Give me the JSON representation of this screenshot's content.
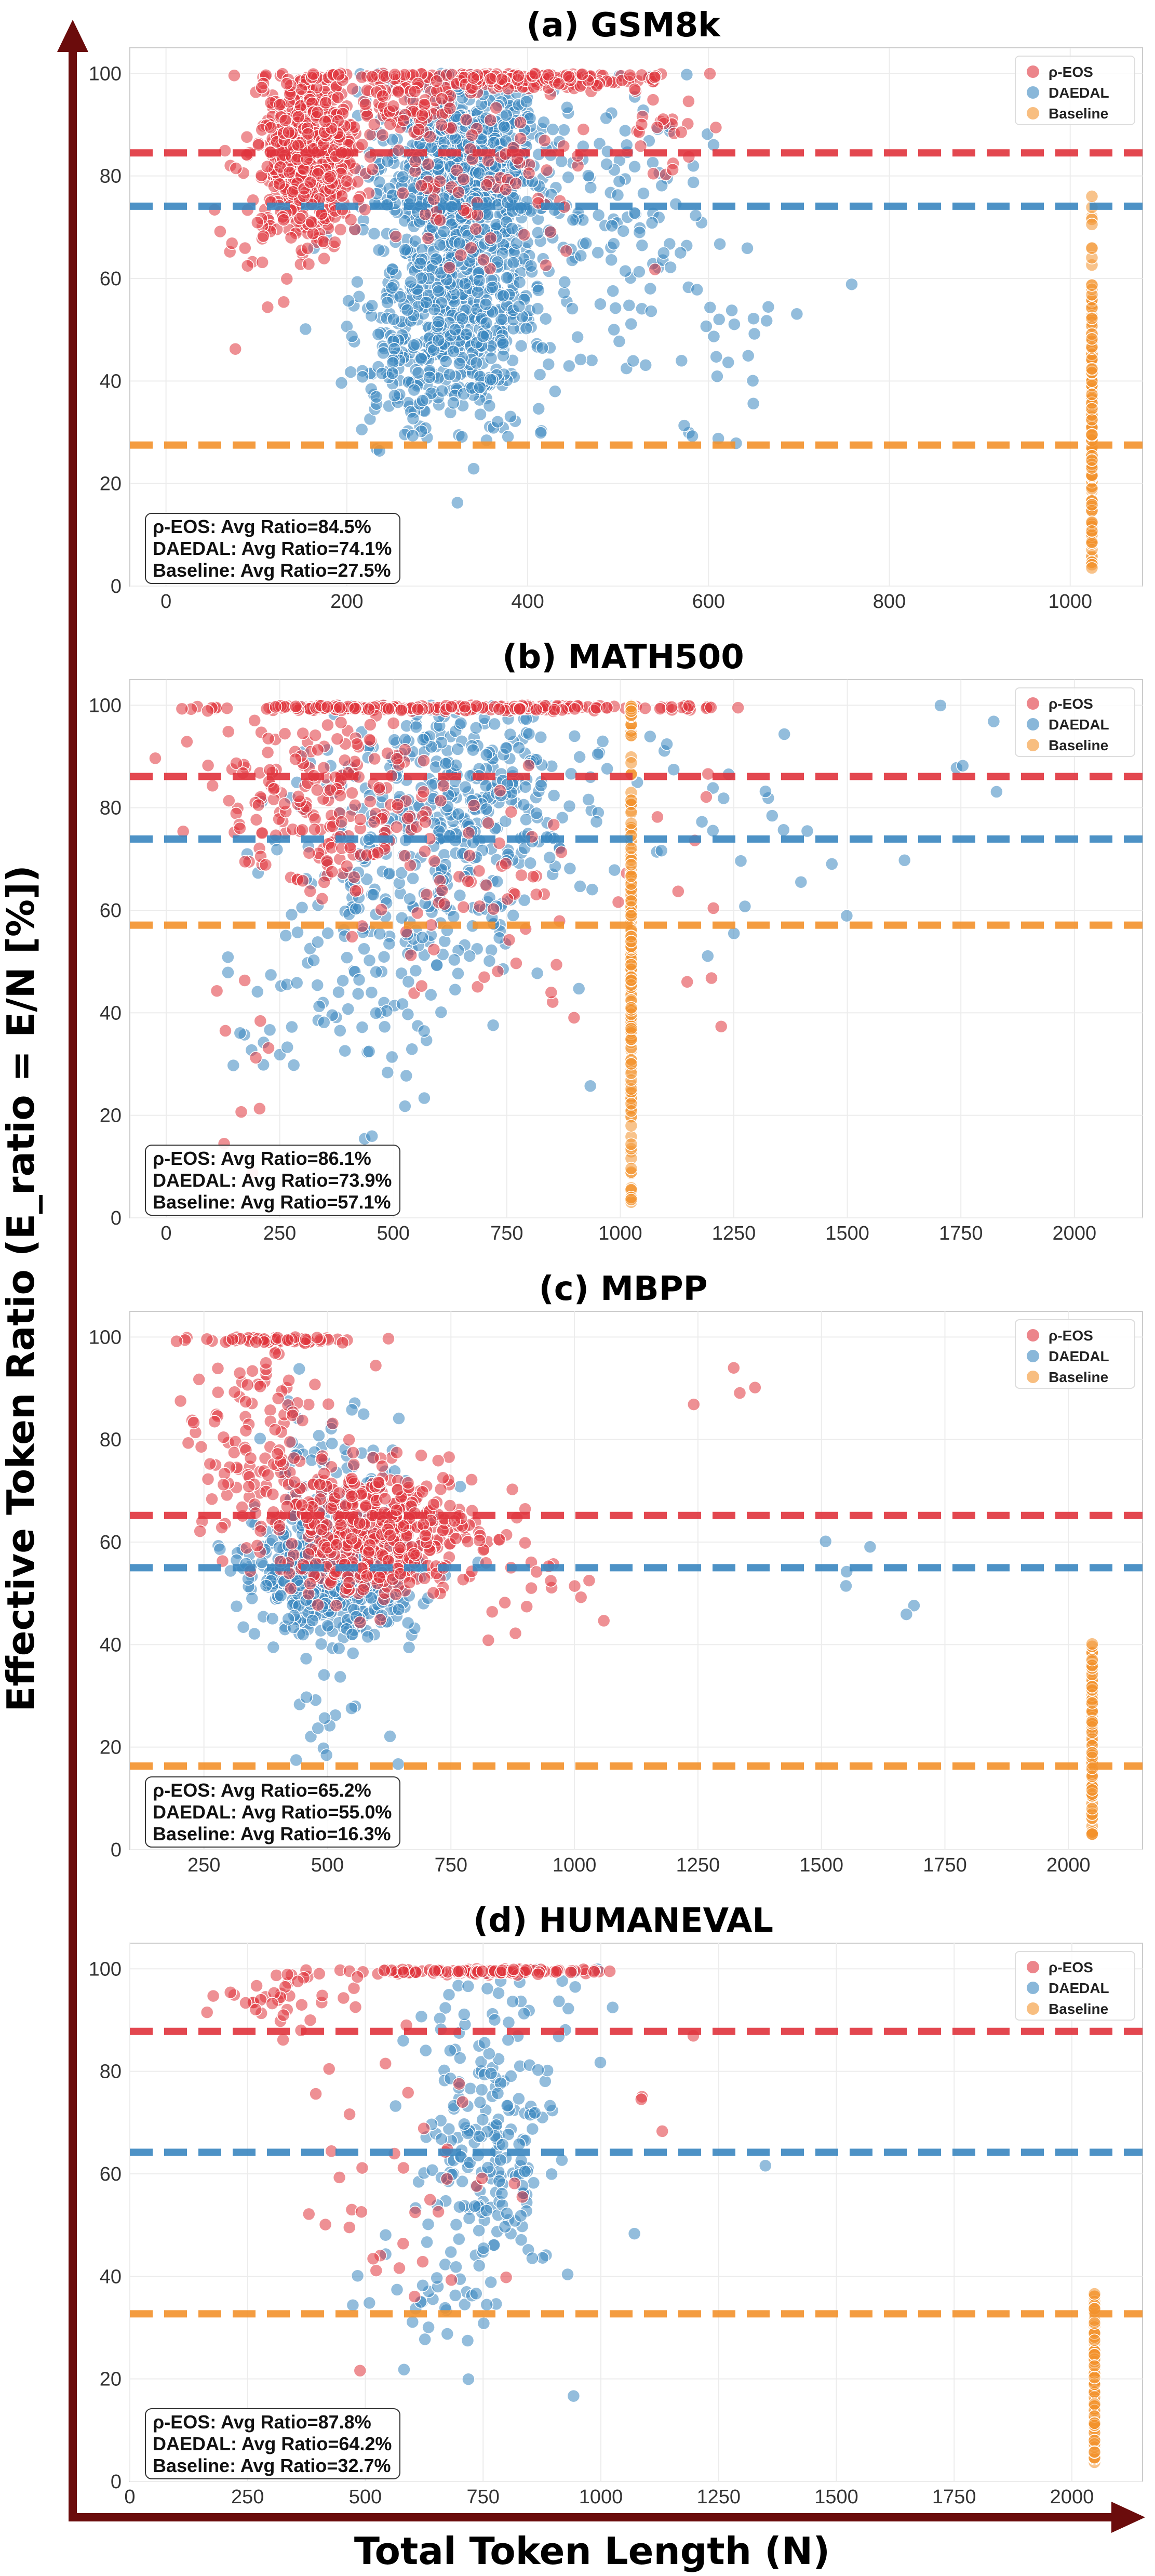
{
  "figure": {
    "y_axis_label": "Effective Token Ratio (E_ratio = E/N [%])",
    "x_axis_label": "Total Token Length (N)"
  },
  "colors": {
    "rho_eos": "#e0343d",
    "daedal": "#3a87c0",
    "baseline": "#f3922c",
    "axis_arrow": "#6b0c0c"
  },
  "chart_data": [
    {
      "id": "a",
      "type": "scatter",
      "title": "(a) GSM8k",
      "xlim": [
        -40,
        1080
      ],
      "ylim": [
        0,
        105
      ],
      "xticks": [
        0,
        200,
        400,
        600,
        800,
        1000
      ],
      "yticks": [
        0,
        20,
        40,
        60,
        80,
        100
      ],
      "legend": [
        "ρ-EOS",
        "DAEDAL",
        "Baseline"
      ],
      "avg_lines": {
        "rho_eos": 84.5,
        "daedal": 74.1,
        "baseline": 27.5
      },
      "annotation": [
        "ρ-EOS: Avg Ratio=84.5%",
        "DAEDAL: Avg Ratio=74.1%",
        "Baseline: Avg Ratio=27.5%"
      ],
      "clusters": {
        "rho_eos": [
          [
            160,
            50,
            84,
            8,
            700
          ],
          [
            260,
            70,
            96,
            4,
            120
          ],
          [
            420,
            110,
            99,
            1,
            160
          ],
          [
            350,
            120,
            80,
            8,
            80
          ],
          [
            560,
            80,
            88,
            8,
            25
          ],
          [
            100,
            40,
            70,
            10,
            25
          ]
        ],
        "daedal": [
          [
            330,
            90,
            82,
            9,
            800
          ],
          [
            330,
            100,
            55,
            12,
            500
          ],
          [
            280,
            80,
            43,
            6,
            120
          ],
          [
            500,
            100,
            70,
            15,
            100
          ],
          [
            620,
            120,
            50,
            10,
            30
          ]
        ],
        "baseline": [
          [
            1024,
            0,
            30,
            13,
            180
          ],
          [
            1024,
            0,
            60,
            10,
            20
          ]
        ]
      }
    },
    {
      "id": "b",
      "type": "scatter",
      "title": "(b) MATH500",
      "xlim": [
        -80,
        2150
      ],
      "ylim": [
        0,
        105
      ],
      "xticks": [
        0,
        250,
        500,
        750,
        1000,
        1250,
        1500,
        1750,
        2000
      ],
      "yticks": [
        0,
        20,
        40,
        60,
        80,
        100
      ],
      "legend": [
        "ρ-EOS",
        "DAEDAL",
        "Baseline"
      ],
      "avg_lines": {
        "rho_eos": 86.1,
        "daedal": 73.9,
        "baseline": 57.1
      },
      "annotation": [
        "ρ-EOS: Avg Ratio=86.1%",
        "DAEDAL: Avg Ratio=73.9%",
        "Baseline: Avg Ratio=57.1%"
      ],
      "clusters": {
        "rho_eos": [
          [
            700,
            520,
            99.5,
            0.3,
            220
          ],
          [
            350,
            230,
            82,
            10,
            220
          ],
          [
            700,
            250,
            65,
            12,
            60
          ],
          [
            150,
            80,
            30,
            12,
            10
          ],
          [
            1150,
            150,
            70,
            15,
            10
          ]
        ],
        "daedal": [
          [
            650,
            300,
            85,
            10,
            300
          ],
          [
            550,
            300,
            62,
            12,
            200
          ],
          [
            400,
            250,
            40,
            10,
            60
          ],
          [
            1300,
            300,
            75,
            15,
            20
          ],
          [
            1700,
            150,
            90,
            12,
            6
          ]
        ],
        "baseline": [
          [
            1024,
            0,
            50,
            24,
            180
          ],
          [
            1024,
            0,
            98,
            2,
            30
          ]
        ]
      }
    },
    {
      "id": "c",
      "type": "scatter",
      "title": "(c) MBPP",
      "xlim": [
        100,
        2150
      ],
      "ylim": [
        0,
        105
      ],
      "xticks": [
        250,
        500,
        750,
        1000,
        1250,
        1500,
        1750,
        2000
      ],
      "yticks": [
        0,
        20,
        40,
        60,
        80,
        100
      ],
      "legend": [
        "ρ-EOS",
        "DAEDAL",
        "Baseline"
      ],
      "avg_lines": {
        "rho_eos": 65.2,
        "daedal": 55.0,
        "baseline": 16.3
      },
      "annotation": [
        "ρ-EOS: Avg Ratio=65.2%",
        "DAEDAL: Avg Ratio=55.0%",
        "Baseline: Avg Ratio=16.3%"
      ],
      "clusters": {
        "rho_eos": [
          [
            600,
            200,
            62,
            6,
            500
          ],
          [
            350,
            150,
            80,
            12,
            120
          ],
          [
            400,
            150,
            99.5,
            0.3,
            60
          ],
          [
            900,
            100,
            55,
            6,
            20
          ],
          [
            1300,
            100,
            70,
            12,
            4
          ]
        ],
        "daedal": [
          [
            520,
            160,
            54,
            6,
            650
          ],
          [
            500,
            150,
            70,
            10,
            80
          ],
          [
            500,
            120,
            25,
            4,
            15
          ],
          [
            1600,
            200,
            50,
            8,
            6
          ]
        ],
        "baseline": [
          [
            2048,
            0,
            18,
            8,
            160
          ],
          [
            2048,
            0,
            35,
            4,
            10
          ]
        ]
      }
    },
    {
      "id": "d",
      "type": "scatter",
      "title": "(d) HUMANEVAL",
      "xlim": [
        0,
        2150
      ],
      "ylim": [
        0,
        105
      ],
      "xticks": [
        0,
        250,
        500,
        750,
        1000,
        1250,
        1500,
        1750,
        2000
      ],
      "yticks": [
        0,
        20,
        40,
        60,
        80,
        100
      ],
      "legend": [
        "ρ-EOS",
        "DAEDAL",
        "Baseline"
      ],
      "avg_lines": {
        "rho_eos": 87.8,
        "daedal": 64.2,
        "baseline": 32.7
      },
      "annotation": [
        "ρ-EOS: Avg Ratio=87.8%",
        "DAEDAL: Avg Ratio=64.2%",
        "Baseline: Avg Ratio=32.7%"
      ],
      "clusters": {
        "rho_eos": [
          [
            750,
            250,
            99.5,
            0.3,
            120
          ],
          [
            350,
            150,
            95,
            4,
            40
          ],
          [
            600,
            250,
            60,
            15,
            40
          ],
          [
            1100,
            100,
            75,
            5,
            4
          ]
        ],
        "daedal": [
          [
            750,
            150,
            62,
            15,
            200
          ],
          [
            800,
            200,
            90,
            8,
            40
          ],
          [
            600,
            150,
            35,
            5,
            20
          ],
          [
            1350,
            50,
            60,
            3,
            1
          ]
        ],
        "baseline": [
          [
            2048,
            0,
            18,
            8,
            90
          ],
          [
            2048,
            0,
            36,
            3,
            8
          ]
        ]
      }
    }
  ]
}
